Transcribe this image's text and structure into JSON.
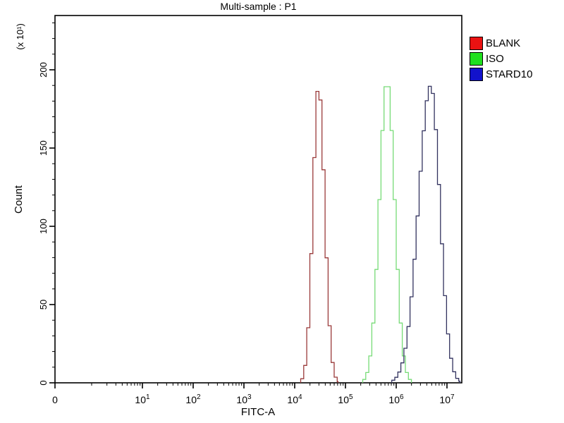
{
  "title": "Multi-sample : P1",
  "chart_data": {
    "type": "line",
    "subtype": "flow-cytometry-histogram-overlay",
    "title": "Multi-sample : P1",
    "xlabel": "FITC-A",
    "ylabel": "Count",
    "grid": false,
    "legend_position": "top-right-outside",
    "x_axis": {
      "label": "FITC-A",
      "scale": "biexponential-log",
      "ticks": [
        {
          "label": "0",
          "value": 0
        },
        {
          "mant": "10",
          "exp": "1",
          "value": 10
        },
        {
          "mant": "10",
          "exp": "2",
          "value": 100
        },
        {
          "mant": "10",
          "exp": "3",
          "value": 1000
        },
        {
          "mant": "10",
          "exp": "4",
          "value": 10000
        },
        {
          "mant": "10",
          "exp": "5",
          "value": 100000
        },
        {
          "mant": "10",
          "exp": "6",
          "value": 1000000
        },
        {
          "mant": "10",
          "exp": "7",
          "value": 10000000
        }
      ]
    },
    "y_axis": {
      "label": "Count",
      "unit_multiplier": "(x 10¹)",
      "major_ticks": [
        0,
        50,
        100,
        150,
        200
      ],
      "minor_tick_step": 10,
      "max_shown": 230
    },
    "series": [
      {
        "name": "BLANK",
        "curve_color": "#9a3a3a",
        "legend_color": "#ea1212",
        "peak_value": 30000,
        "peak_count": 190,
        "log10_mean": 4.47,
        "log10_sigma_left": 0.11,
        "log10_sigma_right": 0.12
      },
      {
        "name": "ISO",
        "curve_color": "#77db77",
        "legend_color": "#1ee01e",
        "peak_value": 660000,
        "peak_count": 193,
        "log10_mean": 5.82,
        "log10_sigma_left": 0.15,
        "log10_sigma_right": 0.15
      },
      {
        "name": "STARD10",
        "curve_color": "#32325f",
        "legend_color": "#1212cc",
        "peak_value": 4800000,
        "peak_count": 190,
        "log10_mean": 6.68,
        "log10_sigma_left": 0.24,
        "log10_sigma_right": 0.18
      }
    ]
  }
}
